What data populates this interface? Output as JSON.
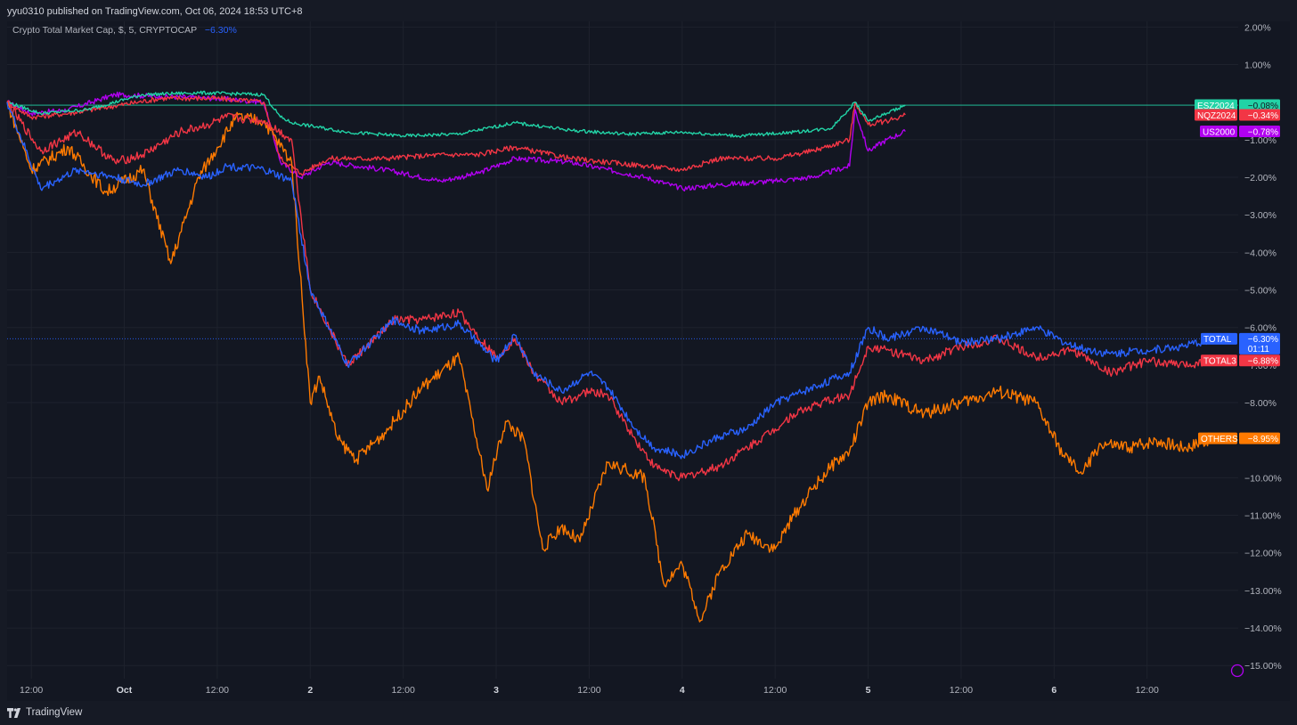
{
  "header": {
    "publisher": "yyu0310 published on TradingView.com, Oct 06, 2024 18:53 UTC+8"
  },
  "legend": {
    "title": "Crypto Total Market Cap, $, 5, CRYPTOCAP",
    "change": "−6.30%"
  },
  "footer": {
    "brand": "TradingView"
  },
  "colors": {
    "background": "#131722",
    "grid": "#1e222d",
    "axis_text": "#b2b5be",
    "ESZ2024": "#22d3a6",
    "NQZ2024": "#f23645",
    "US2000": "#b100f0",
    "TOTAL": "#2962ff",
    "TOTAL3": "#f23645",
    "OTHERS": "#ff7a00"
  },
  "chart_data": {
    "type": "line",
    "y_unit": "%",
    "ylim": [
      -15.35,
      2.15
    ],
    "y_ticks": [
      "2.00%",
      "1.00%",
      "−1.00%",
      "−2.00%",
      "−3.00%",
      "−4.00%",
      "−5.00%",
      "−6.00%",
      "−7.00%",
      "−8.00%",
      "−10.00%",
      "−11.00%",
      "−12.00%",
      "−13.00%",
      "−14.00%",
      "−15.00%"
    ],
    "x_ticks": [
      "12:00",
      "Oct",
      "12:00",
      "2",
      "12:00",
      "3",
      "12:00",
      "4",
      "12:00",
      "5",
      "12:00",
      "6",
      "12:00"
    ],
    "x_ticks_days": [
      -0.5,
      0,
      0.5,
      1,
      1.5,
      2,
      2.5,
      3,
      3.5,
      4,
      4.5,
      5,
      5.5
    ],
    "x_range_days": [
      -0.63,
      5.99
    ],
    "grid": true,
    "series": [
      {
        "name": "ESZ2024",
        "last": "−0.08%",
        "x": [
          -0.63,
          -0.45,
          -0.2,
          0.1,
          0.4,
          0.75,
          0.84,
          0.9,
          1.2,
          1.5,
          1.8,
          2.1,
          2.4,
          2.7,
          3.0,
          3.3,
          3.6,
          3.8,
          3.93,
          4.0,
          4.1,
          4.2
        ],
        "y": [
          0.0,
          -0.3,
          -0.2,
          0.2,
          0.25,
          0.2,
          -0.4,
          -0.55,
          -0.8,
          -0.9,
          -0.85,
          -0.55,
          -0.75,
          -0.85,
          -0.8,
          -0.9,
          -0.8,
          -0.7,
          0.0,
          -0.5,
          -0.3,
          -0.08
        ]
      },
      {
        "name": "NQZ2024",
        "last": "−0.34%",
        "x": [
          -0.63,
          -0.5,
          -0.3,
          -0.05,
          0.2,
          0.5,
          0.75,
          0.84,
          0.95,
          1.1,
          1.4,
          1.7,
          1.9,
          2.1,
          2.4,
          2.6,
          2.8,
          3.0,
          3.2,
          3.5,
          3.7,
          3.9,
          3.93,
          4.0,
          4.1,
          4.2
        ],
        "y": [
          0.0,
          -0.4,
          -0.3,
          -0.1,
          0.1,
          0.1,
          0.0,
          -1.5,
          -1.9,
          -1.5,
          -1.5,
          -1.4,
          -1.4,
          -1.2,
          -1.5,
          -1.6,
          -1.7,
          -1.8,
          -1.5,
          -1.5,
          -1.3,
          -1.0,
          0.0,
          -0.6,
          -0.5,
          -0.34
        ]
      },
      {
        "name": "US2000",
        "last": "−0.78%",
        "x": [
          -0.63,
          -0.5,
          -0.3,
          -0.05,
          0.2,
          0.5,
          0.75,
          0.84,
          0.95,
          1.1,
          1.4,
          1.7,
          1.9,
          2.1,
          2.4,
          2.6,
          2.8,
          3.0,
          3.2,
          3.5,
          3.7,
          3.9,
          3.93,
          4.0,
          4.1,
          4.2
        ],
        "y": [
          0.0,
          -0.3,
          -0.2,
          0.2,
          0.15,
          0.1,
          0.0,
          -1.6,
          -2.0,
          -1.6,
          -1.8,
          -2.1,
          -1.9,
          -1.5,
          -1.6,
          -1.8,
          -2.0,
          -2.3,
          -2.2,
          -2.1,
          -2.0,
          -1.7,
          -0.2,
          -1.3,
          -1.0,
          -0.78
        ]
      },
      {
        "name": "TOTAL",
        "last": "−6.30%",
        "x": [
          -0.63,
          -0.45,
          -0.25,
          -0.05,
          0.1,
          0.3,
          0.45,
          0.55,
          0.75,
          0.9,
          1.0,
          1.2,
          1.45,
          1.6,
          1.8,
          2.0,
          2.1,
          2.2,
          2.35,
          2.5,
          2.6,
          2.75,
          2.85,
          3.0,
          3.2,
          3.35,
          3.5,
          3.6,
          3.75,
          3.9,
          4.0,
          4.1,
          4.3,
          4.5,
          4.7,
          4.9,
          5.1,
          5.3,
          5.5,
          5.7,
          5.85
        ],
        "y": [
          0.0,
          -2.3,
          -1.8,
          -2.0,
          -2.2,
          -1.8,
          -2.0,
          -1.7,
          -1.8,
          -2.1,
          -5.0,
          -7.0,
          -5.8,
          -6.1,
          -5.9,
          -6.9,
          -6.2,
          -7.2,
          -7.7,
          -7.2,
          -7.6,
          -8.7,
          -9.2,
          -9.4,
          -8.9,
          -8.7,
          -8.0,
          -7.8,
          -7.5,
          -7.2,
          -6.0,
          -6.3,
          -6.0,
          -6.4,
          -6.3,
          -6.0,
          -6.5,
          -6.7,
          -6.6,
          -6.5,
          -6.3
        ]
      },
      {
        "name": "TOTAL3",
        "last": "−6.88%",
        "x": [
          -0.63,
          -0.45,
          -0.25,
          -0.05,
          0.1,
          0.3,
          0.45,
          0.55,
          0.75,
          0.9,
          1.0,
          1.2,
          1.45,
          1.6,
          1.8,
          2.0,
          2.1,
          2.2,
          2.35,
          2.5,
          2.6,
          2.75,
          2.85,
          3.0,
          3.2,
          3.35,
          3.5,
          3.6,
          3.75,
          3.9,
          4.0,
          4.1,
          4.3,
          4.5,
          4.7,
          4.9,
          5.1,
          5.3,
          5.5,
          5.7,
          5.85
        ],
        "y": [
          0.0,
          -1.3,
          -0.8,
          -1.6,
          -1.4,
          -0.8,
          -0.6,
          -0.4,
          -0.5,
          -1.0,
          -5.0,
          -7.0,
          -5.8,
          -5.8,
          -5.6,
          -6.8,
          -6.3,
          -7.2,
          -8.0,
          -7.7,
          -7.8,
          -9.0,
          -9.7,
          -10.0,
          -9.7,
          -9.2,
          -8.7,
          -8.3,
          -8.0,
          -7.8,
          -6.5,
          -6.6,
          -6.9,
          -6.5,
          -6.3,
          -6.8,
          -6.6,
          -7.2,
          -6.9,
          -7.0,
          -6.88
        ]
      },
      {
        "name": "OTHERS",
        "last": "−8.95%",
        "x": [
          -0.63,
          -0.5,
          -0.3,
          -0.1,
          0.1,
          0.25,
          0.4,
          0.5,
          0.6,
          0.75,
          0.9,
          1.0,
          1.05,
          1.15,
          1.25,
          1.4,
          1.6,
          1.8,
          1.95,
          2.05,
          2.15,
          2.25,
          2.35,
          2.45,
          2.6,
          2.7,
          2.8,
          2.9,
          3.0,
          3.1,
          3.2,
          3.35,
          3.5,
          3.6,
          3.7,
          3.8,
          3.9,
          4.0,
          4.1,
          4.3,
          4.5,
          4.7,
          4.9,
          5.05,
          5.15,
          5.25,
          5.4,
          5.55,
          5.7,
          5.85
        ],
        "y": [
          0.0,
          -1.8,
          -1.2,
          -2.4,
          -1.8,
          -4.3,
          -2.0,
          -1.2,
          -0.4,
          -0.5,
          -1.6,
          -8.0,
          -7.3,
          -9.0,
          -9.5,
          -8.8,
          -7.6,
          -6.8,
          -10.3,
          -8.5,
          -9.0,
          -11.9,
          -11.3,
          -11.7,
          -9.6,
          -9.8,
          -10.0,
          -12.8,
          -12.3,
          -13.8,
          -12.5,
          -11.5,
          -11.9,
          -11.0,
          -10.3,
          -9.7,
          -9.3,
          -8.0,
          -7.8,
          -8.3,
          -8.0,
          -7.7,
          -8.0,
          -9.4,
          -9.9,
          -9.1,
          -9.2,
          -9.0,
          -9.2,
          -8.95
        ]
      }
    ],
    "reference_lines": [
      {
        "label": "ESZ2024 last",
        "value": -0.08
      },
      {
        "label": "TOTAL last",
        "value": -6.3
      }
    ],
    "last_value_labels": [
      {
        "series": "ESZ2024",
        "value": "−0.08%"
      },
      {
        "series": "NQZ2024",
        "value": "−0.34%"
      },
      {
        "series": "US2000",
        "value": "−0.78%"
      },
      {
        "series": "TOTAL",
        "value": "−6.30%",
        "countdown": "01:11"
      },
      {
        "series": "TOTAL3",
        "value": "−6.88%"
      },
      {
        "series": "OTHERS",
        "value": "−8.95%"
      }
    ]
  }
}
